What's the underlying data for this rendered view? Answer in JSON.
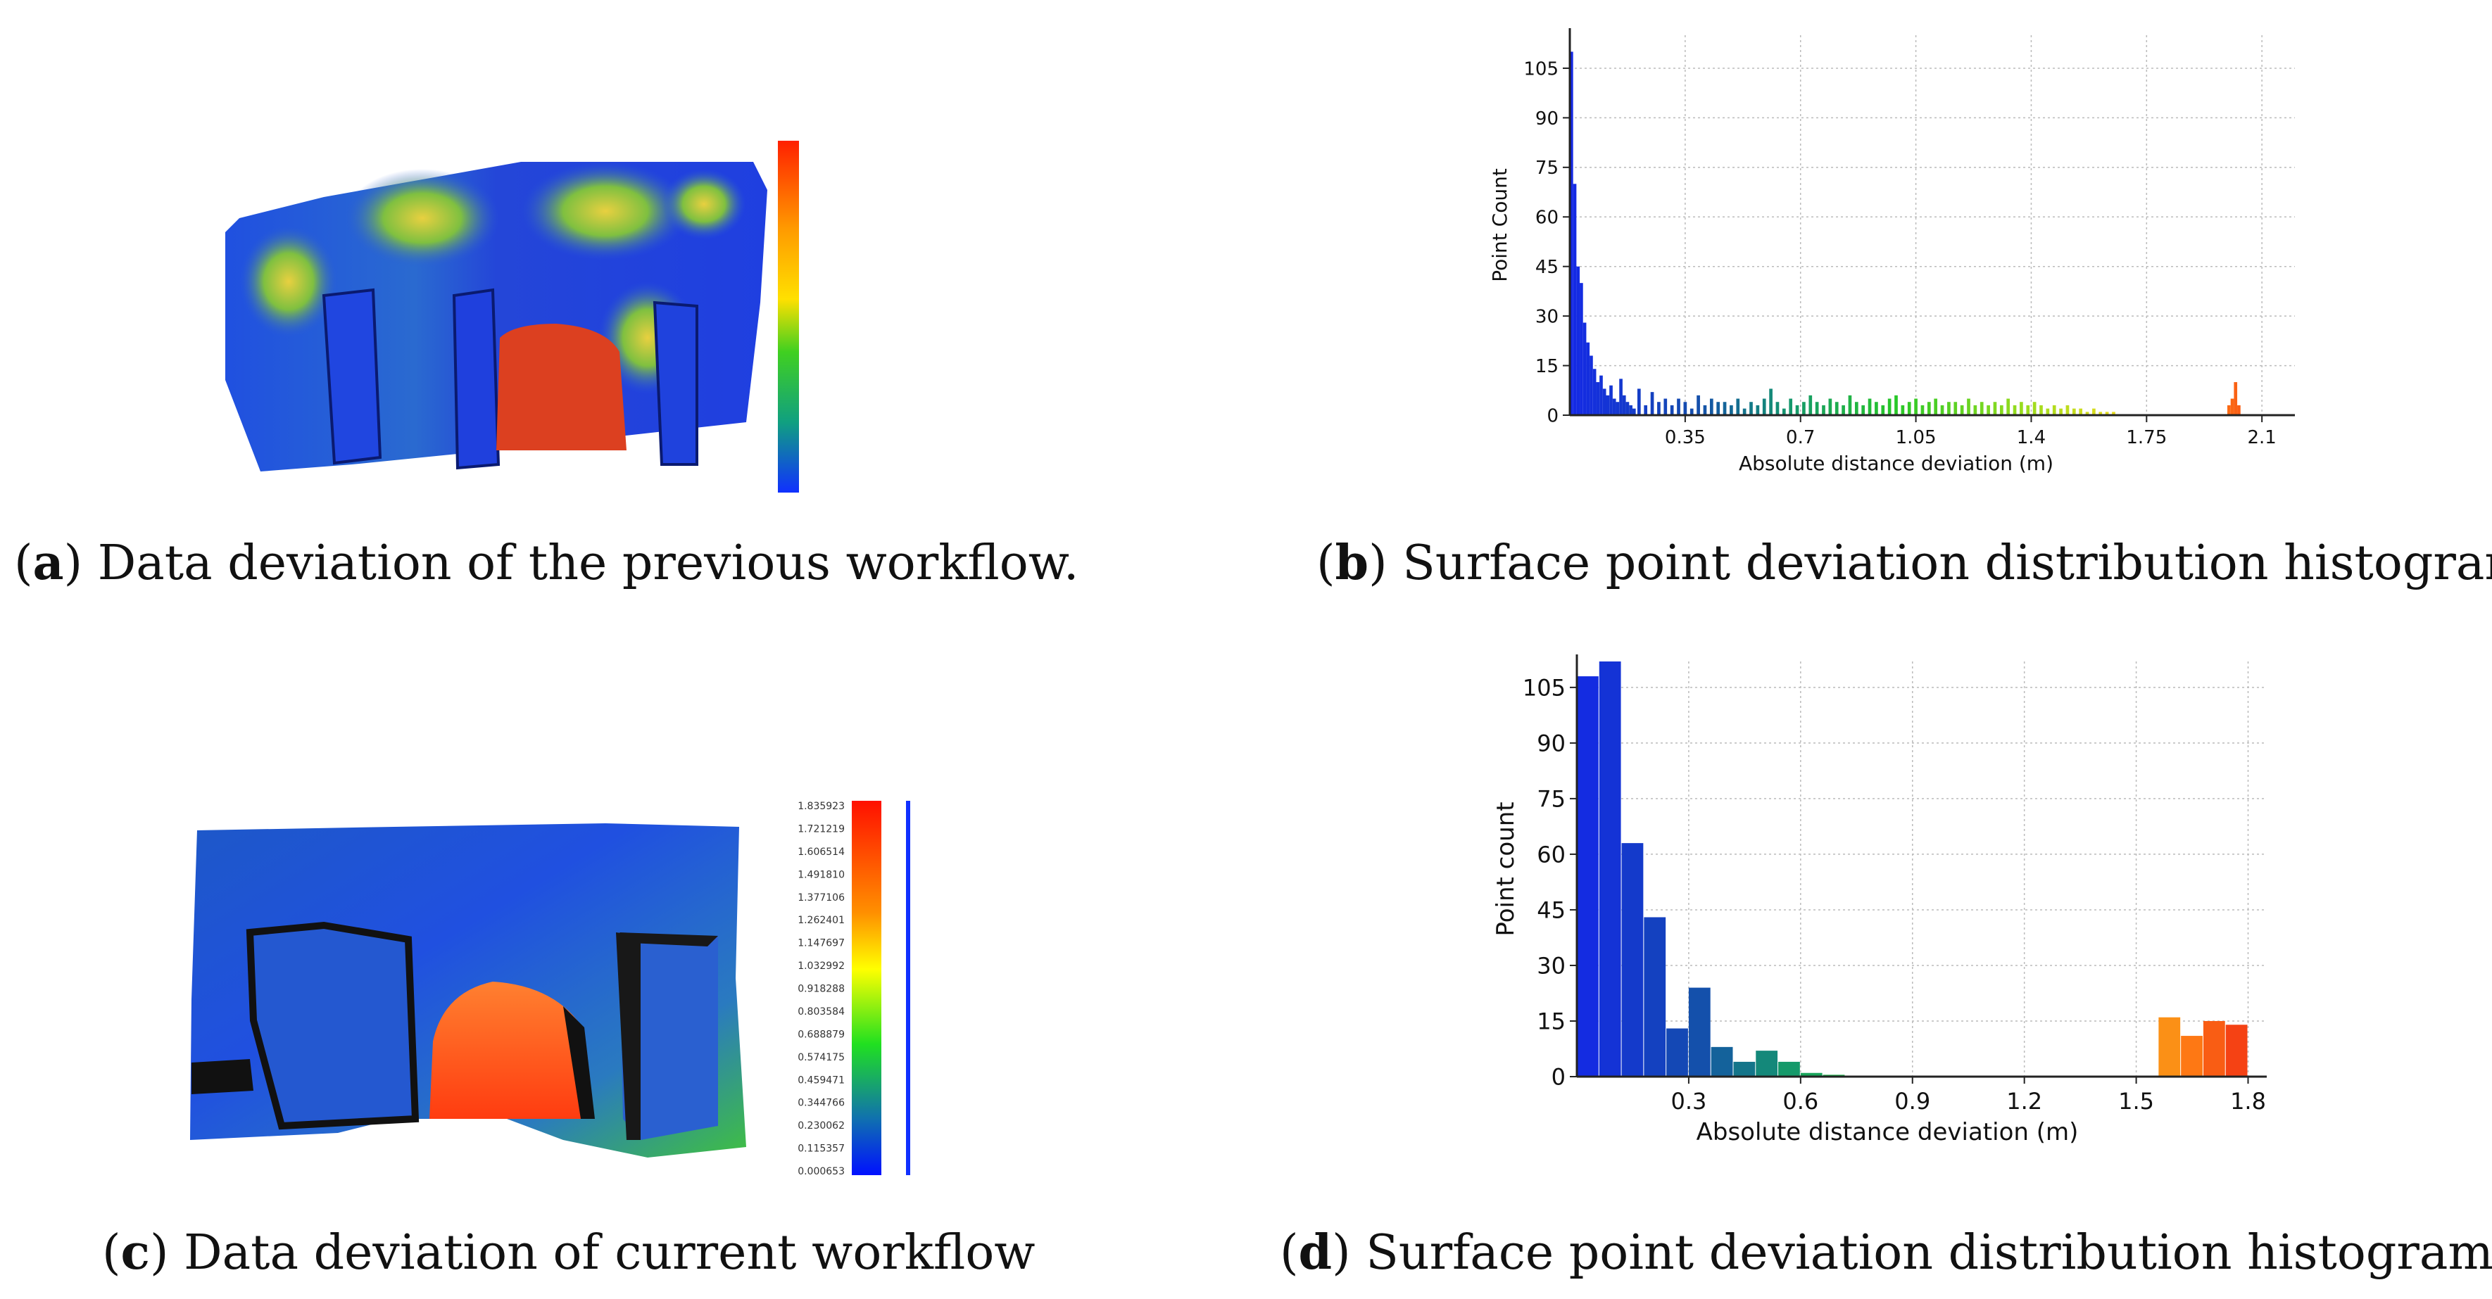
{
  "captions": {
    "a": {
      "letter": "a",
      "text": ") Data deviation of the previous workflow."
    },
    "b": {
      "letter": "b",
      "text": ") Surface point deviation distribution histogram"
    },
    "c": {
      "letter": "c",
      "text": ") Data deviation of current workflow"
    },
    "d": {
      "letter": "d",
      "text": ") Surface point deviation distribution histogram"
    }
  },
  "colorbar_c": {
    "labels": [
      "1.835923",
      "1.721219",
      "1.606514",
      "1.491810",
      "1.377106",
      "1.262401",
      "1.147697",
      "1.032992",
      "0.918288",
      "0.803584",
      "0.688879",
      "0.574175",
      "0.459471",
      "0.344766",
      "0.230062",
      "0.115357",
      "0.000653"
    ]
  },
  "chart_data": [
    {
      "id": "b",
      "type": "bar",
      "xlabel": "Absolute distance deviation (m)",
      "ylabel": "Point Count",
      "xlim": [
        0,
        2.2
      ],
      "ylim": [
        0,
        115
      ],
      "xticks": [
        0.35,
        0.7,
        1.05,
        1.4,
        1.75,
        2.1
      ],
      "xtick_labels": [
        "0.35",
        "0.7",
        "1.05",
        "1.4",
        "1.75",
        "2.1"
      ],
      "yticks": [
        0,
        15,
        30,
        45,
        60,
        75,
        90,
        105
      ],
      "ytick_labels": [
        "0",
        "15",
        "30",
        "45",
        "60",
        "75",
        "90",
        "105"
      ],
      "grid": true,
      "bin_width": 0.01,
      "x": [
        0.005,
        0.015,
        0.025,
        0.035,
        0.045,
        0.055,
        0.065,
        0.075,
        0.085,
        0.095,
        0.105,
        0.115,
        0.125,
        0.135,
        0.145,
        0.155,
        0.165,
        0.175,
        0.185,
        0.195,
        0.21,
        0.23,
        0.25,
        0.27,
        0.29,
        0.31,
        0.33,
        0.35,
        0.37,
        0.39,
        0.41,
        0.43,
        0.45,
        0.47,
        0.49,
        0.51,
        0.53,
        0.55,
        0.57,
        0.59,
        0.61,
        0.63,
        0.65,
        0.67,
        0.69,
        0.71,
        0.73,
        0.75,
        0.77,
        0.79,
        0.81,
        0.83,
        0.85,
        0.87,
        0.89,
        0.91,
        0.93,
        0.95,
        0.97,
        0.99,
        1.01,
        1.03,
        1.05,
        1.07,
        1.09,
        1.11,
        1.13,
        1.15,
        1.17,
        1.19,
        1.21,
        1.23,
        1.25,
        1.27,
        1.29,
        1.31,
        1.33,
        1.35,
        1.37,
        1.39,
        1.41,
        1.43,
        1.45,
        1.47,
        1.49,
        1.51,
        1.53,
        1.55,
        1.57,
        1.59,
        1.61,
        1.63,
        1.65,
        2.0,
        2.01,
        2.02,
        2.03
      ],
      "values": [
        110,
        70,
        45,
        40,
        28,
        22,
        18,
        14,
        10,
        12,
        8,
        6,
        9,
        5,
        4,
        11,
        6,
        4,
        3,
        2,
        8,
        3,
        7,
        4,
        5,
        3,
        5,
        4,
        2,
        6,
        3,
        5,
        4,
        4,
        3,
        5,
        2,
        4,
        3,
        5,
        8,
        4,
        2,
        5,
        3,
        4,
        6,
        4,
        3,
        5,
        4,
        3,
        6,
        4,
        3,
        5,
        4,
        3,
        5,
        6,
        3,
        4,
        5,
        3,
        4,
        5,
        3,
        4,
        4,
        3,
        5,
        3,
        4,
        3,
        4,
        3,
        5,
        3,
        4,
        3,
        4,
        3,
        2,
        3,
        2,
        3,
        2,
        2,
        1,
        2,
        1,
        1,
        1,
        3,
        5,
        10,
        3
      ]
    },
    {
      "id": "d",
      "type": "bar",
      "xlabel": "Absolute distance deviation (m)",
      "ylabel": "Point count",
      "xlim": [
        0,
        1.85
      ],
      "ylim": [
        0,
        112
      ],
      "xticks": [
        0.3,
        0.6,
        0.9,
        1.2,
        1.5,
        1.8
      ],
      "xtick_labels": [
        "0.3",
        "0.6",
        "0.9",
        "1.2",
        "1.5",
        "1.8"
      ],
      "yticks": [
        0,
        15,
        30,
        45,
        60,
        75,
        90,
        105
      ],
      "ytick_labels": [
        "0",
        "15",
        "30",
        "45",
        "60",
        "75",
        "90",
        "105"
      ],
      "grid": true,
      "bin_width": 0.06,
      "x": [
        0.03,
        0.09,
        0.15,
        0.21,
        0.27,
        0.33,
        0.39,
        0.45,
        0.51,
        0.57,
        0.63,
        0.69,
        1.59,
        1.65,
        1.71,
        1.77
      ],
      "values": [
        108,
        112,
        63,
        43,
        13,
        24,
        8,
        4,
        7,
        4,
        1,
        0.5,
        16,
        11,
        15,
        14
      ]
    }
  ]
}
